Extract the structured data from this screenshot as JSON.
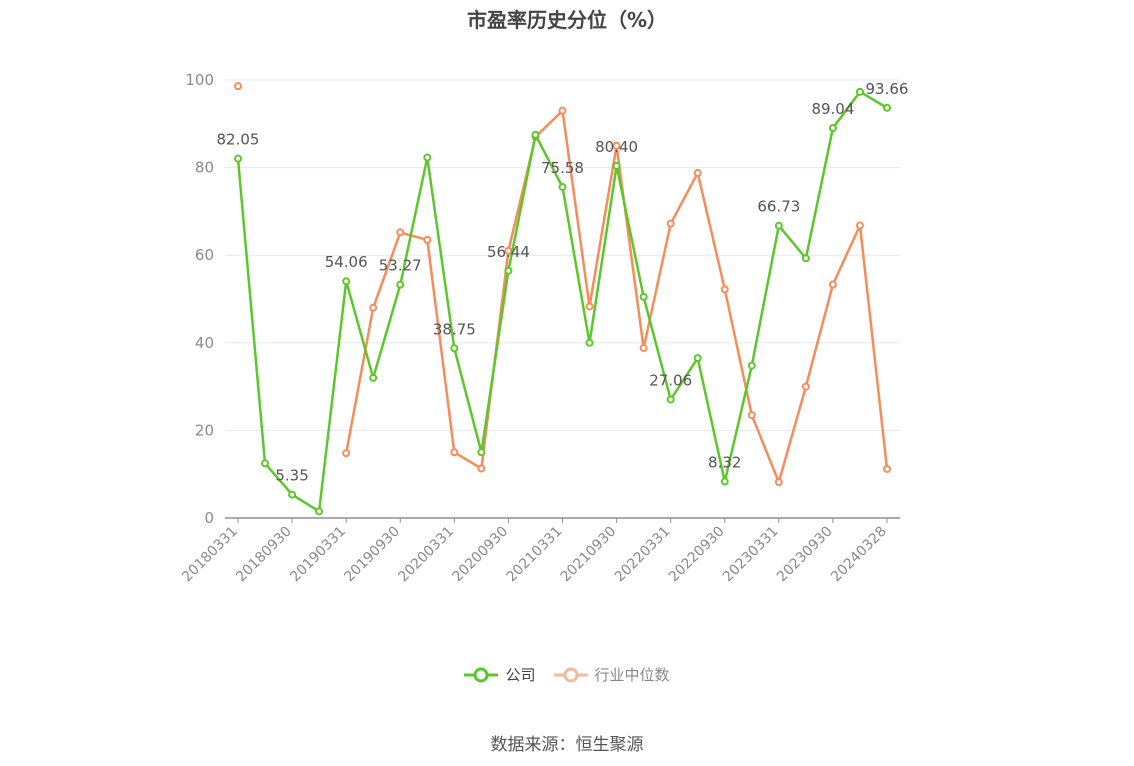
{
  "chart_data": {
    "type": "line",
    "title": "市盈率历史分位（%）",
    "xlabel": "",
    "ylabel": "",
    "ylim": [
      0,
      100
    ],
    "yticks": [
      0,
      20,
      40,
      60,
      80,
      100
    ],
    "grid": true,
    "legend_position": "bottom",
    "x": [
      "20180331",
      "20180630",
      "20180930",
      "20181231",
      "20190331",
      "20190630",
      "20190930",
      "20191231",
      "20200331",
      "20200630",
      "20200930",
      "20201231",
      "20210331",
      "20210630",
      "20210930",
      "20211231",
      "20220331",
      "20220630",
      "20220930",
      "20221231",
      "20230331",
      "20230630",
      "20230930",
      "20231231",
      "20240328"
    ],
    "x_tick_labels": [
      "20180331",
      "20180930",
      "20190331",
      "20190930",
      "20200331",
      "20200930",
      "20210331",
      "20210930",
      "20220331",
      "20220930",
      "20230331",
      "20230930",
      "20240328"
    ],
    "series": [
      {
        "name": "公司",
        "color": "#5cc72a",
        "values": [
          82.05,
          12.5,
          5.35,
          1.5,
          54.06,
          32.0,
          53.27,
          82.3,
          38.75,
          15.0,
          56.44,
          87.5,
          75.58,
          40.0,
          80.4,
          50.5,
          27.06,
          36.5,
          8.32,
          34.8,
          66.73,
          59.3,
          89.04,
          97.3,
          93.66
        ],
        "labels": [
          "82.05",
          "",
          "5.35",
          "",
          "54.06",
          "",
          "53.27",
          "",
          "38.75",
          "",
          "56.44",
          "",
          "75.58",
          "",
          "80.40",
          "",
          "27.06",
          "",
          "8.32",
          "",
          "66.73",
          "",
          "89.04",
          "",
          "93.66"
        ]
      },
      {
        "name": "行业中位数",
        "color": "#f58c5a",
        "values": [
          98.6,
          null,
          null,
          null,
          14.8,
          48.0,
          65.2,
          63.5,
          15.0,
          11.3,
          61.0,
          87.0,
          93.0,
          48.3,
          85.0,
          38.8,
          67.2,
          78.8,
          52.2,
          23.5,
          8.2,
          30.0,
          53.3,
          66.8,
          11.2
        ]
      }
    ]
  },
  "legend": {
    "items": [
      {
        "label": "公司",
        "color": "#5cc72a"
      },
      {
        "label": "行业中位数",
        "color": "#f7b8a0"
      }
    ]
  },
  "source": "数据来源：恒生聚源"
}
